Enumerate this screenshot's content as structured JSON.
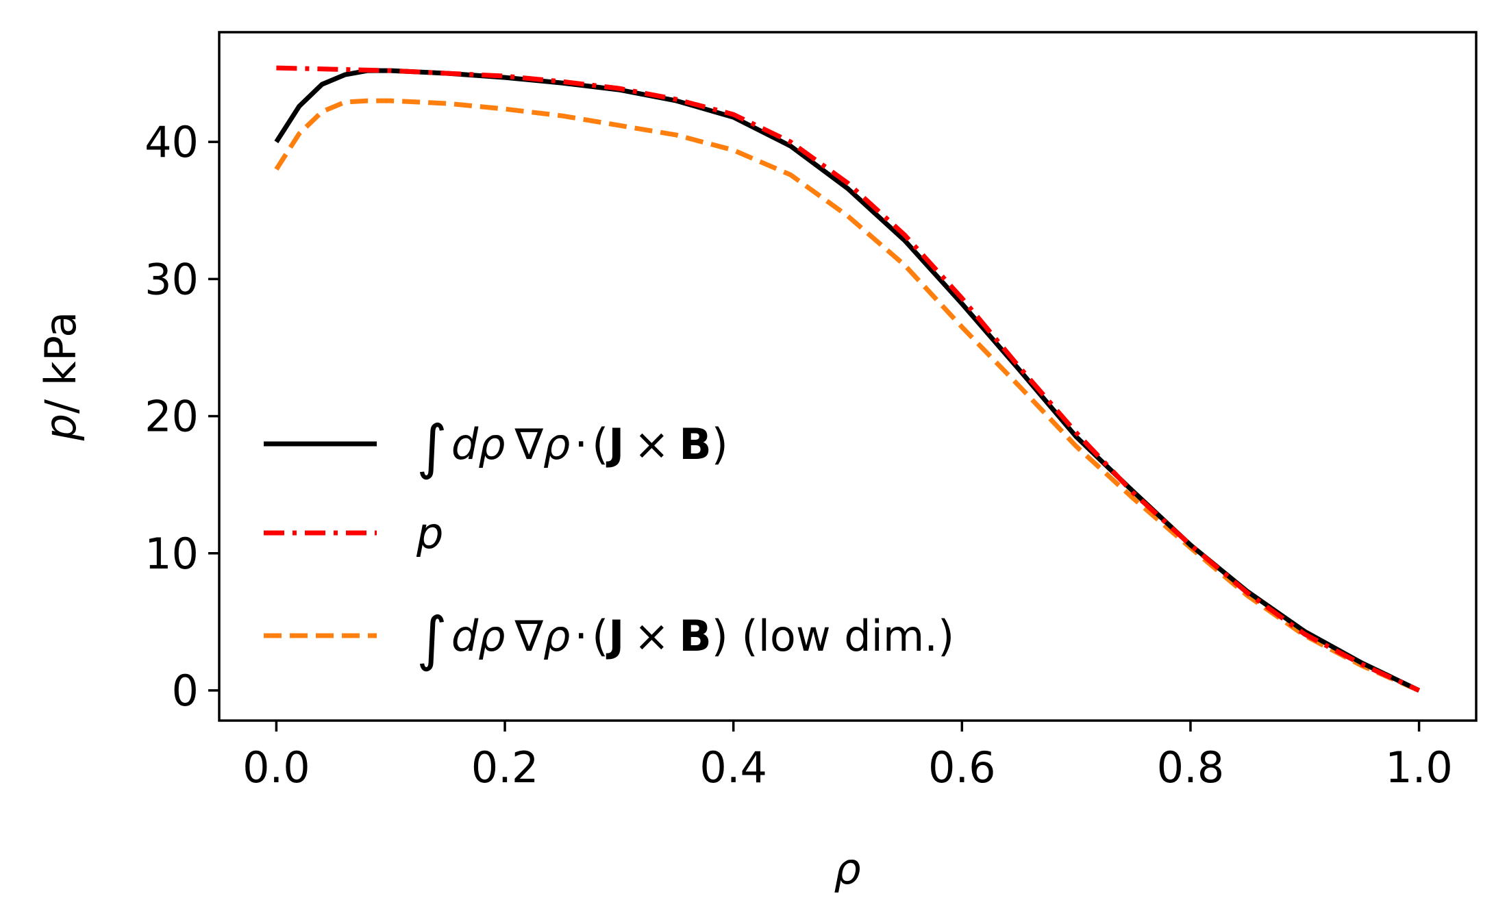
{
  "chart_data": {
    "type": "line",
    "title": "",
    "xlabel": "ρ",
    "ylabel": {
      "symbol": "p",
      "unit": "/ kPa"
    },
    "xlim": [
      -0.05,
      1.05
    ],
    "ylim": [
      -2.2,
      48.0
    ],
    "x_ticks": [
      {
        "value": 0.0,
        "label": "0.0"
      },
      {
        "value": 0.2,
        "label": "0.2"
      },
      {
        "value": 0.4,
        "label": "0.4"
      },
      {
        "value": 0.6,
        "label": "0.6"
      },
      {
        "value": 0.8,
        "label": "0.8"
      },
      {
        "value": 1.0,
        "label": "1.0"
      }
    ],
    "y_ticks": [
      {
        "value": 0,
        "label": "0"
      },
      {
        "value": 10,
        "label": "10"
      },
      {
        "value": 20,
        "label": "20"
      },
      {
        "value": 30,
        "label": "30"
      },
      {
        "value": 40,
        "label": "40"
      }
    ],
    "grid": false,
    "legend_position": "center-left",
    "series": [
      {
        "id": "jxb",
        "legend": {
          "integral": "∫",
          "d_rho": "dρ",
          "nabla_rho": "∇ρ",
          "dot": "·",
          "open": "(",
          "J": "J",
          "times": "×",
          "B": "B",
          "close": ")",
          "suffix": ""
        },
        "color": "#000000",
        "dash": "solid",
        "x": [
          0.0,
          0.02,
          0.04,
          0.06,
          0.08,
          0.1,
          0.15,
          0.2,
          0.25,
          0.3,
          0.35,
          0.4,
          0.45,
          0.5,
          0.55,
          0.6,
          0.65,
          0.7,
          0.75,
          0.8,
          0.85,
          0.9,
          0.95,
          1.0
        ],
        "y": [
          40.0,
          42.6,
          44.2,
          44.9,
          45.2,
          45.2,
          45.0,
          44.7,
          44.3,
          43.8,
          43.0,
          41.8,
          39.7,
          36.6,
          32.8,
          28.2,
          23.4,
          18.5,
          14.5,
          10.6,
          7.2,
          4.3,
          2.0,
          0.0
        ]
      },
      {
        "id": "p",
        "legend": {
          "symbol": "p"
        },
        "color": "#ff0000",
        "dash": "dashdot",
        "x": [
          0.0,
          0.05,
          0.1,
          0.15,
          0.2,
          0.25,
          0.3,
          0.35,
          0.4,
          0.45,
          0.5,
          0.55,
          0.6,
          0.65,
          0.7,
          0.75,
          0.8,
          0.85,
          0.9,
          0.95,
          1.0
        ],
        "y": [
          45.4,
          45.3,
          45.2,
          45.0,
          44.8,
          44.4,
          43.9,
          43.1,
          42.0,
          40.0,
          37.0,
          33.2,
          28.6,
          23.6,
          18.8,
          14.4,
          10.6,
          7.1,
          4.1,
          1.9,
          0.0
        ]
      },
      {
        "id": "jxb-low",
        "legend": {
          "integral": "∫",
          "d_rho": "dρ",
          "nabla_rho": "∇ρ",
          "dot": "·",
          "open": "(",
          "J": "J",
          "times": "×",
          "B": "B",
          "close": ")",
          "suffix": " (low dim.)"
        },
        "color": "#ff7f0e",
        "dash": "dashed",
        "x": [
          0.0,
          0.02,
          0.04,
          0.06,
          0.08,
          0.1,
          0.15,
          0.2,
          0.25,
          0.3,
          0.35,
          0.4,
          0.45,
          0.5,
          0.55,
          0.6,
          0.65,
          0.7,
          0.75,
          0.8,
          0.85,
          0.9,
          0.95,
          1.0
        ],
        "y": [
          38.0,
          40.6,
          42.2,
          42.9,
          43.0,
          43.0,
          42.8,
          42.4,
          41.9,
          41.2,
          40.5,
          39.4,
          37.6,
          34.6,
          31.0,
          26.5,
          22.2,
          17.8,
          14.0,
          10.4,
          6.9,
          4.0,
          1.8,
          0.0
        ]
      }
    ]
  }
}
